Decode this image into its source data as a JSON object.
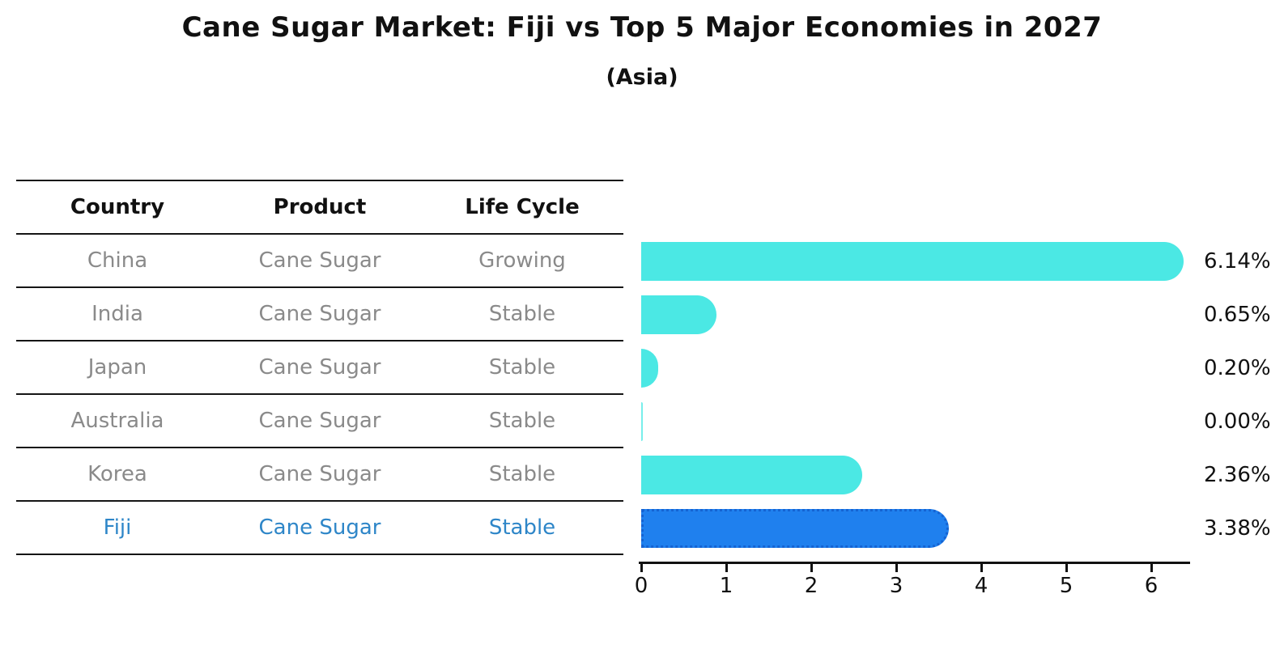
{
  "header": {
    "title": "Cane Sugar Market: Fiji vs Top 5 Major Economies in 2027",
    "subtitle": "(Asia)"
  },
  "table": {
    "headers": [
      "Country",
      "Product",
      "Life Cycle"
    ],
    "rows": [
      {
        "country": "China",
        "product": "Cane Sugar",
        "life_cycle": "Growing",
        "highlight": false
      },
      {
        "country": "India",
        "product": "Cane Sugar",
        "life_cycle": "Stable",
        "highlight": false
      },
      {
        "country": "Japan",
        "product": "Cane Sugar",
        "life_cycle": "Stable",
        "highlight": false
      },
      {
        "country": "Australia",
        "product": "Cane Sugar",
        "life_cycle": "Stable",
        "highlight": false
      },
      {
        "country": "Korea",
        "product": "Cane Sugar",
        "life_cycle": "Stable",
        "highlight": false
      },
      {
        "country": "Fiji",
        "product": "Cane Sugar",
        "life_cycle": "Stable",
        "highlight": true
      }
    ]
  },
  "chart_data": {
    "type": "bar",
    "orientation": "horizontal",
    "title": "Cane Sugar Market: Fiji vs Top 5 Major Economies in 2027",
    "subtitle": "(Asia)",
    "categories": [
      "China",
      "India",
      "Japan",
      "Australia",
      "Korea",
      "Fiji"
    ],
    "values": [
      6.14,
      0.65,
      0.2,
      0.0,
      2.36,
      3.38
    ],
    "value_labels": [
      "6.14%",
      "0.65%",
      "0.20%",
      "0.00%",
      "2.36%",
      "3.38%"
    ],
    "xlabel": "",
    "ylabel": "",
    "xlim": [
      0,
      6.5
    ],
    "xticks": [
      "0",
      "1",
      "2",
      "3",
      "4",
      "5",
      "6"
    ],
    "grid": false,
    "legend": false,
    "colors": {
      "bar": "#4BE8E4",
      "highlight_bar": "#1F80EE",
      "highlight_border": "#1563D2",
      "highlight_text": "#2E86C8",
      "row_text": "#8A8A8A",
      "axis": "#111111"
    }
  }
}
